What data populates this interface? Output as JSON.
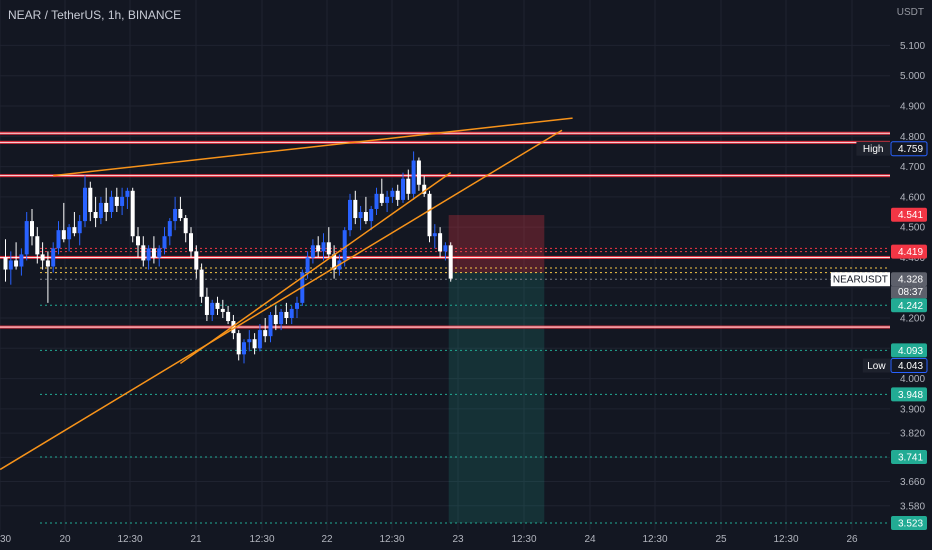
{
  "header": {
    "title": "NEAR / TetherUS, 1h, BINANCE",
    "currency": "USDT"
  },
  "colors": {
    "background": "#131722",
    "grid": "#1f2330",
    "up": "#2962ff",
    "down": "#ffffff",
    "trendline": "#f7931a",
    "resistance": "#f23645",
    "support_dotted": "#22ab94",
    "axis_text": "#b2b5be"
  },
  "chart_data": {
    "type": "candlestick",
    "y_axis": {
      "min": 3.5,
      "max": 5.25,
      "ticks": [
        "5.100",
        "5.000",
        "4.900",
        "4.800",
        "4.700",
        "4.600",
        "4.500",
        "4.400",
        "4.300",
        "4.200",
        "4.100",
        "4.000",
        "3.900",
        "3.820",
        "3.740",
        "3.660",
        "3.580"
      ]
    },
    "x_axis": {
      "labels": [
        "30",
        "20",
        "12:30",
        "21",
        "12:30",
        "22",
        "12:30",
        "23",
        "12:30",
        "24",
        "12:30",
        "25",
        "12:30",
        "26"
      ]
    },
    "candles": [
      [
        4.4,
        4.46,
        4.32,
        4.36
      ],
      [
        4.36,
        4.42,
        4.31,
        4.39
      ],
      [
        4.39,
        4.45,
        4.36,
        4.37
      ],
      [
        4.37,
        4.43,
        4.34,
        4.41
      ],
      [
        4.41,
        4.55,
        4.39,
        4.52
      ],
      [
        4.52,
        4.56,
        4.44,
        4.47
      ],
      [
        4.47,
        4.5,
        4.38,
        4.41
      ],
      [
        4.41,
        4.45,
        4.36,
        4.39
      ],
      [
        4.39,
        4.42,
        4.25,
        4.37
      ],
      [
        4.37,
        4.45,
        4.35,
        4.43
      ],
      [
        4.43,
        4.52,
        4.41,
        4.49
      ],
      [
        4.49,
        4.58,
        4.45,
        4.46
      ],
      [
        4.46,
        4.51,
        4.42,
        4.5
      ],
      [
        4.5,
        4.55,
        4.47,
        4.48
      ],
      [
        4.48,
        4.54,
        4.44,
        4.52
      ],
      [
        4.52,
        4.67,
        4.5,
        4.63
      ],
      [
        4.63,
        4.65,
        4.52,
        4.55
      ],
      [
        4.55,
        4.6,
        4.5,
        4.53
      ],
      [
        4.53,
        4.6,
        4.51,
        4.58
      ],
      [
        4.58,
        4.63,
        4.52,
        4.55
      ],
      [
        4.55,
        4.62,
        4.53,
        4.6
      ],
      [
        4.6,
        4.63,
        4.55,
        4.57
      ],
      [
        4.57,
        4.63,
        4.54,
        4.6
      ],
      [
        4.6,
        4.63,
        4.56,
        4.62
      ],
      [
        4.62,
        4.63,
        4.45,
        4.47
      ],
      [
        4.47,
        4.5,
        4.4,
        4.44
      ],
      [
        4.44,
        4.47,
        4.37,
        4.39
      ],
      [
        4.39,
        4.44,
        4.36,
        4.43
      ],
      [
        4.43,
        4.47,
        4.38,
        4.4
      ],
      [
        4.4,
        4.44,
        4.37,
        4.43
      ],
      [
        4.43,
        4.5,
        4.41,
        4.47
      ],
      [
        4.47,
        4.53,
        4.44,
        4.52
      ],
      [
        4.52,
        4.6,
        4.49,
        4.56
      ],
      [
        4.56,
        4.6,
        4.52,
        4.53
      ],
      [
        4.53,
        4.54,
        4.45,
        4.48
      ],
      [
        4.48,
        4.5,
        4.4,
        4.42
      ],
      [
        4.42,
        4.44,
        4.33,
        4.36
      ],
      [
        4.36,
        4.38,
        4.25,
        4.27
      ],
      [
        4.27,
        4.3,
        4.19,
        4.21
      ],
      [
        4.21,
        4.26,
        4.19,
        4.25
      ],
      [
        4.25,
        4.27,
        4.21,
        4.23
      ],
      [
        4.23,
        4.26,
        4.2,
        4.22
      ],
      [
        4.22,
        4.24,
        4.18,
        4.19
      ],
      [
        4.19,
        4.21,
        4.13,
        4.15
      ],
      [
        4.15,
        4.16,
        4.06,
        4.08
      ],
      [
        4.08,
        4.13,
        4.05,
        4.12
      ],
      [
        4.12,
        4.16,
        4.09,
        4.13
      ],
      [
        4.13,
        4.15,
        4.08,
        4.1
      ],
      [
        4.1,
        4.18,
        4.09,
        4.16
      ],
      [
        4.16,
        4.2,
        4.12,
        4.14
      ],
      [
        4.14,
        4.22,
        4.12,
        4.21
      ],
      [
        4.21,
        4.24,
        4.16,
        4.18
      ],
      [
        4.18,
        4.23,
        4.16,
        4.22
      ],
      [
        4.22,
        4.25,
        4.18,
        4.2
      ],
      [
        4.2,
        4.24,
        4.18,
        4.23
      ],
      [
        4.23,
        4.27,
        4.2,
        4.25
      ],
      [
        4.25,
        4.36,
        4.24,
        4.35
      ],
      [
        4.35,
        4.42,
        4.33,
        4.4
      ],
      [
        4.4,
        4.46,
        4.38,
        4.44
      ],
      [
        4.44,
        4.47,
        4.4,
        4.42
      ],
      [
        4.42,
        4.48,
        4.39,
        4.45
      ],
      [
        4.45,
        4.5,
        4.4,
        4.41
      ],
      [
        4.41,
        4.44,
        4.33,
        4.36
      ],
      [
        4.36,
        4.41,
        4.34,
        4.39
      ],
      [
        4.39,
        4.5,
        4.37,
        4.49
      ],
      [
        4.49,
        4.61,
        4.47,
        4.59
      ],
      [
        4.59,
        4.62,
        4.51,
        4.53
      ],
      [
        4.53,
        4.57,
        4.49,
        4.55
      ],
      [
        4.55,
        4.6,
        4.51,
        4.52
      ],
      [
        4.52,
        4.57,
        4.49,
        4.56
      ],
      [
        4.56,
        4.63,
        4.54,
        4.61
      ],
      [
        4.61,
        4.66,
        4.57,
        4.58
      ],
      [
        4.58,
        4.62,
        4.55,
        4.6
      ],
      [
        4.6,
        4.63,
        4.58,
        4.62
      ],
      [
        4.62,
        4.64,
        4.57,
        4.59
      ],
      [
        4.59,
        4.68,
        4.58,
        4.66
      ],
      [
        4.66,
        4.69,
        4.59,
        4.61
      ],
      [
        4.61,
        4.75,
        4.59,
        4.72
      ],
      [
        4.72,
        4.73,
        4.62,
        4.64
      ],
      [
        4.64,
        4.67,
        4.6,
        4.61
      ],
      [
        4.61,
        4.62,
        4.45,
        4.47
      ],
      [
        4.47,
        4.51,
        4.43,
        4.48
      ],
      [
        4.48,
        4.5,
        4.4,
        4.42
      ],
      [
        4.42,
        4.45,
        4.39,
        4.44
      ],
      [
        4.44,
        4.45,
        4.32,
        4.33
      ]
    ],
    "trendlines": [
      {
        "name": "upper-rising-trendline",
        "from": [
          9,
          4.67
        ],
        "to": [
          107,
          4.86
        ]
      },
      {
        "name": "long-support-trendline",
        "from": [
          -1,
          3.7
        ],
        "to": [
          105,
          4.82
        ]
      },
      {
        "name": "mid-support-trendline",
        "from": [
          33,
          4.05
        ],
        "to": [
          84,
          4.68
        ]
      }
    ],
    "horizontal_lines": [
      {
        "name": "resistance-4800",
        "value": 4.81,
        "color": "#f23645",
        "style": "band"
      },
      {
        "name": "resistance-4780",
        "value": 4.78,
        "color": "#f23645",
        "style": "band"
      },
      {
        "name": "resistance-4670",
        "value": 4.67,
        "color": "#f23645",
        "style": "band"
      },
      {
        "name": "resistance-4400",
        "value": 4.4,
        "color": "#f23645",
        "style": "band"
      },
      {
        "name": "resistance-4170",
        "value": 4.17,
        "color": "#f23645",
        "style": "band"
      },
      {
        "name": "target-4242",
        "value": 4.242,
        "color": "#22ab94",
        "style": "dotted"
      },
      {
        "name": "target-4093",
        "value": 4.093,
        "color": "#22ab94",
        "style": "dotted"
      },
      {
        "name": "target-3948",
        "value": 3.948,
        "color": "#22ab94",
        "style": "dotted"
      },
      {
        "name": "target-3741",
        "value": 3.741,
        "color": "#22ab94",
        "style": "dotted"
      },
      {
        "name": "target-3523",
        "value": 3.523,
        "color": "#22ab94",
        "style": "dotted"
      },
      {
        "name": "stop-4419",
        "value": 4.419,
        "color": "#f23645",
        "style": "dotted"
      },
      {
        "name": "stop-4430",
        "value": 4.43,
        "color": "#f23645",
        "style": "dotted"
      },
      {
        "name": "entry-4365",
        "value": 4.365,
        "color": "#f7c948",
        "style": "dotted"
      },
      {
        "name": "entry-4350",
        "value": 4.35,
        "color": "#f7c948",
        "style": "dotted"
      },
      {
        "name": "price-4328",
        "value": 4.328,
        "color": "#787b86",
        "style": "dotted"
      }
    ],
    "short_position": {
      "entry": 4.35,
      "stop": 4.54,
      "target": 3.523,
      "from_candle": 84,
      "to_candle": 96
    },
    "price_labels": [
      {
        "text": "4.759",
        "value": 4.759,
        "bg": "#131722",
        "fg": "#ffffff",
        "tag": "High"
      },
      {
        "text": "4.541",
        "value": 4.541,
        "bg": "#f23645",
        "fg": "#ffffff"
      },
      {
        "text": "4.419",
        "value": 4.419,
        "bg": "#f23645",
        "fg": "#ffffff"
      },
      {
        "text": "4.328",
        "value": 4.328,
        "bg": "#5d606b",
        "fg": "#ffffff",
        "tag": "NEARUSDT",
        "sub": "08:37"
      },
      {
        "text": "4.242",
        "value": 4.242,
        "bg": "#22ab94",
        "fg": "#ffffff"
      },
      {
        "text": "4.093",
        "value": 4.093,
        "bg": "#22ab94",
        "fg": "#ffffff"
      },
      {
        "text": "4.043",
        "value": 4.043,
        "bg": "#131722",
        "fg": "#ffffff",
        "tag": "Low"
      },
      {
        "text": "3.948",
        "value": 3.948,
        "bg": "#22ab94",
        "fg": "#ffffff"
      },
      {
        "text": "3.741",
        "value": 3.741,
        "bg": "#22ab94",
        "fg": "#ffffff"
      },
      {
        "text": "3.523",
        "value": 3.523,
        "bg": "#22ab94",
        "fg": "#ffffff"
      }
    ]
  }
}
